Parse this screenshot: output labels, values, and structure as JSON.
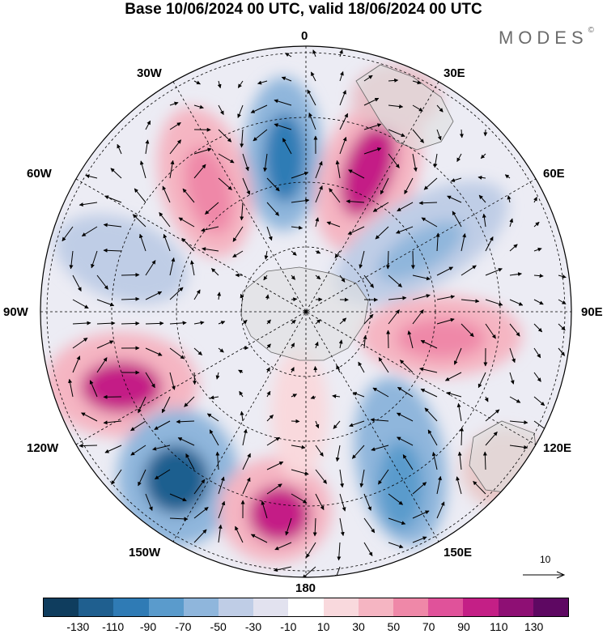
{
  "header": {
    "title": "Base 10/06/2024 00 UTC, valid 18/06/2024 00 UTC",
    "brand": "MODES",
    "brand_mark": "©"
  },
  "map": {
    "projection": "polar-stereographic-south",
    "longitude_labels": {
      "0": "0",
      "30E": "30E",
      "60E": "60E",
      "90E": "90E",
      "120E": "120E",
      "150E": "150E",
      "180": "180",
      "150W": "150W",
      "120W": "120W",
      "90W": "90W",
      "60W": "60W",
      "30W": "30W"
    },
    "reference_vector": {
      "label": "10",
      "icon": "arrow-right-icon"
    }
  },
  "colorbar": {
    "ticks": [
      "-130",
      "-110",
      "-90",
      "-70",
      "-50",
      "-30",
      "-10",
      "10",
      "30",
      "50",
      "70",
      "90",
      "110",
      "130"
    ],
    "colors": [
      "#0f3d5e",
      "#1f5f8f",
      "#2f7bb5",
      "#5a9bcc",
      "#8fb6dc",
      "#bfcde6",
      "#e2e2ef",
      "#ffffff",
      "#f9d9dd",
      "#f5b5c2",
      "#ef88a8",
      "#e0529a",
      "#c41f86",
      "#8e0f74",
      "#5e0862"
    ]
  }
}
